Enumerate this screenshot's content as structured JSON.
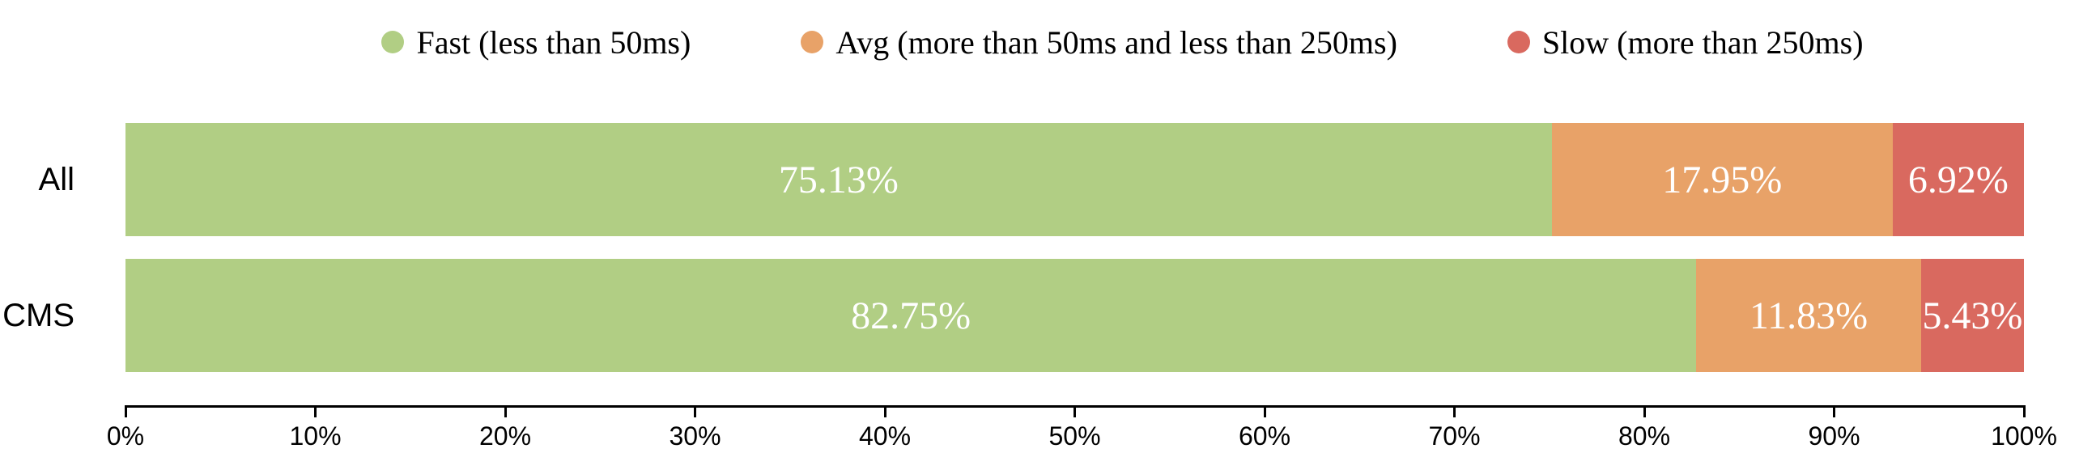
{
  "chart": {
    "background_color": "#ffffff",
    "axis_color": "#000000",
    "text_color": "#000000",
    "value_label_color": "#ffffff"
  },
  "chart_data": {
    "type": "bar",
    "orientation": "horizontal",
    "stacked": true,
    "title": "",
    "xlabel": "",
    "ylabel": "",
    "legend_position": "top",
    "grid": false,
    "categories": [
      "All",
      "CMS"
    ],
    "series": [
      {
        "name": "Fast (less than 50ms)",
        "color": "#b1ce84",
        "values": [
          75.13,
          82.75
        ],
        "labels": [
          "75.13%",
          "82.75%"
        ]
      },
      {
        "name": "Avg (more than 50ms and less than 250ms)",
        "color": "#e8a268",
        "values": [
          17.95,
          11.83
        ],
        "labels": [
          "17.95%",
          "11.83%"
        ]
      },
      {
        "name": "Slow (more than 250ms)",
        "color": "#d9695f",
        "values": [
          6.92,
          5.43
        ],
        "labels": [
          "6.92%",
          "5.43%"
        ]
      }
    ],
    "x_axis": {
      "min": 0,
      "max": 100,
      "tick_step": 10,
      "tick_labels": [
        "0%",
        "10%",
        "20%",
        "30%",
        "40%",
        "50%",
        "60%",
        "70%",
        "80%",
        "90%",
        "100%"
      ]
    }
  }
}
